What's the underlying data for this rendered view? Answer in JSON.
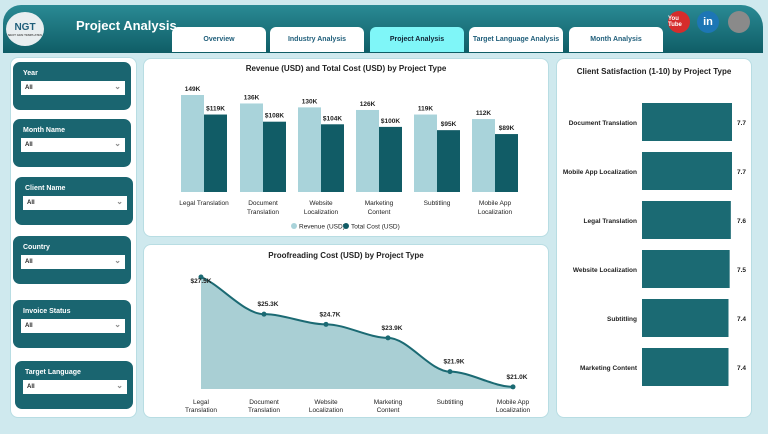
{
  "header": {
    "title": "Project Analysis",
    "logo": "NGT",
    "logo_sub": "NEXT GEN TEMPLATES"
  },
  "tabs": [
    {
      "label": "Overview"
    },
    {
      "label": "Industry Analysis"
    },
    {
      "label": "Project Analysis",
      "active": true
    },
    {
      "label": "Target Language Analysis"
    },
    {
      "label": "Month Analysis"
    }
  ],
  "social": [
    {
      "icon": "youtube-icon",
      "label": "You Tube",
      "color": "#d62c2c"
    },
    {
      "icon": "linkedin-icon",
      "label": "in",
      "color": "#1d76b5"
    },
    {
      "icon": "globe-icon",
      "label": "",
      "color": "#8a8a8a"
    }
  ],
  "slicers": [
    {
      "label": "Year",
      "value": "All"
    },
    {
      "label": "Month Name",
      "value": "All"
    },
    {
      "label": "Client Name",
      "value": "All"
    },
    {
      "label": "Country",
      "value": "All"
    },
    {
      "label": "Invoice Status",
      "value": "All"
    },
    {
      "label": "Target Language",
      "value": "All"
    }
  ],
  "chart_data": [
    {
      "type": "bar",
      "title": "Revenue (USD) and Total Cost (USD) by Project Type",
      "categories": [
        "Legal Translation",
        "Document Translation",
        "Website Localization",
        "Marketing Content",
        "Subtitling",
        "Mobile App Localization"
      ],
      "series": [
        {
          "name": "Revenue (USD)",
          "values": [
            149,
            136,
            130,
            126,
            119,
            112
          ],
          "labels": [
            "149K",
            "136K",
            "130K",
            "126K",
            "119K",
            "112K"
          ],
          "color": "#a9d3da"
        },
        {
          "name": "Total Cost (USD)",
          "values": [
            119,
            108,
            104,
            100,
            95,
            89
          ],
          "labels": [
            "$119K",
            "$108K",
            "$104K",
            "$100K",
            "$95K",
            "$89K"
          ],
          "color": "#115c66"
        }
      ],
      "legend": "bottom"
    },
    {
      "type": "area",
      "title": "Proofreading Cost (USD) by Project Type",
      "categories": [
        "Legal Translation",
        "Document Translation",
        "Website Localization",
        "Marketing Content",
        "Subtitling",
        "Mobile App Localization"
      ],
      "values": [
        27.5,
        25.3,
        24.7,
        23.9,
        21.9,
        21.0
      ],
      "labels": [
        "$27.5K",
        "$25.3K",
        "$24.7K",
        "$23.9K",
        "$21.9K",
        "$21.0K"
      ],
      "color": "#1b6a73",
      "fill": "#a9cfd4"
    },
    {
      "type": "bar",
      "orientation": "horizontal",
      "title": "Client Satisfaction (1-10) by Project Type",
      "categories": [
        "Document Translation",
        "Mobile App Localization",
        "Legal Translation",
        "Website Localization",
        "Subtitling",
        "Marketing Content"
      ],
      "values": [
        7.7,
        7.7,
        7.6,
        7.5,
        7.4,
        7.4
      ],
      "labels": [
        "7.7",
        "7.7",
        "7.6",
        "7.5",
        "7.4",
        "7.4"
      ],
      "color": "#1b6a73"
    }
  ]
}
